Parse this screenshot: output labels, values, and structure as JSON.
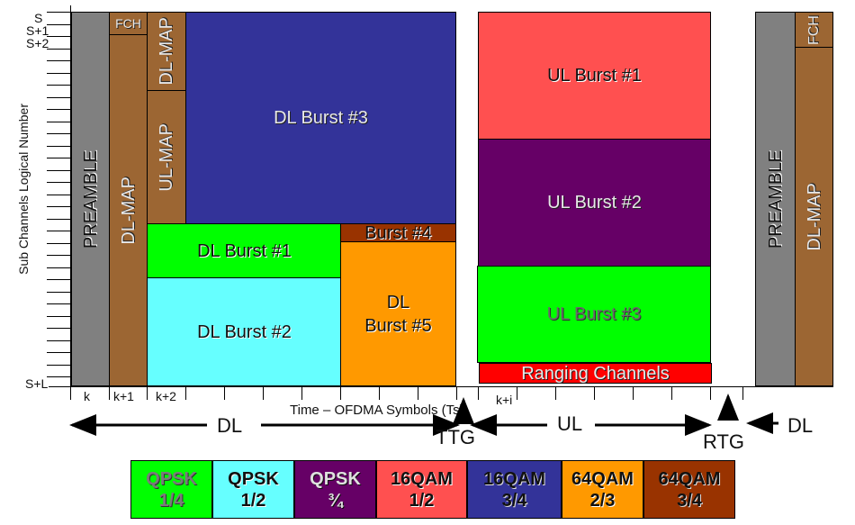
{
  "y_axis": {
    "title": "Sub Channels Logical Number",
    "labels": [
      "S",
      "S+1",
      "S+2",
      "S+L"
    ]
  },
  "x_axis": {
    "title": "Time – OFDMA Symbols (Ts)",
    "labels": [
      "k",
      "k+1",
      "k+2",
      "k+i"
    ]
  },
  "directions": {
    "dl_left": "DL",
    "ul": "UL",
    "dl_right": "DL",
    "ttg": "TTG",
    "rtg": "RTG"
  },
  "blocks": {
    "preamble": "PREAMBLE",
    "fch": "FCH",
    "dl_map": "DL-MAP",
    "dl_map_2": "DL-MAP",
    "ul_map": "UL-MAP",
    "dl_burst_1": "DL Burst #1",
    "dl_burst_2": "DL Burst #2",
    "dl_burst_3": "DL Burst #3",
    "burst_4": "Burst #4",
    "dl_burst_5_line1": "DL",
    "dl_burst_5_line2": "Burst #5",
    "ul_burst_1": "UL Burst #1",
    "ul_burst_2": "UL Burst #2",
    "ul_burst_3": "UL Burst #3",
    "ranging": "Ranging Channels",
    "preamble_next": "PREAMBLE",
    "fch_next": "FCH",
    "dl_map_next": "DL-MAP"
  },
  "colors": {
    "preamble": "#808080",
    "map": "#9c6633",
    "qpsk_1_4": "#00ff00",
    "qpsk_1_2": "#66ffff",
    "qpsk_3_4": "#660066",
    "qam16_1_2": "#ff5050",
    "qam16_3_4": "#333399",
    "qam64_2_3": "#ff9900",
    "qam64_3_4": "#993300",
    "ranging": "#ff0000"
  },
  "legend": [
    {
      "mod": "QPSK",
      "rate": "1/4"
    },
    {
      "mod": "QPSK",
      "rate": "1/2"
    },
    {
      "mod": "QPSK",
      "rate": "¾"
    },
    {
      "mod": "16QAM",
      "rate": "1/2"
    },
    {
      "mod": "16QAM",
      "rate": "3/4"
    },
    {
      "mod": "64QAM",
      "rate": "2/3"
    },
    {
      "mod": "64QAM",
      "rate": "3/4"
    }
  ]
}
